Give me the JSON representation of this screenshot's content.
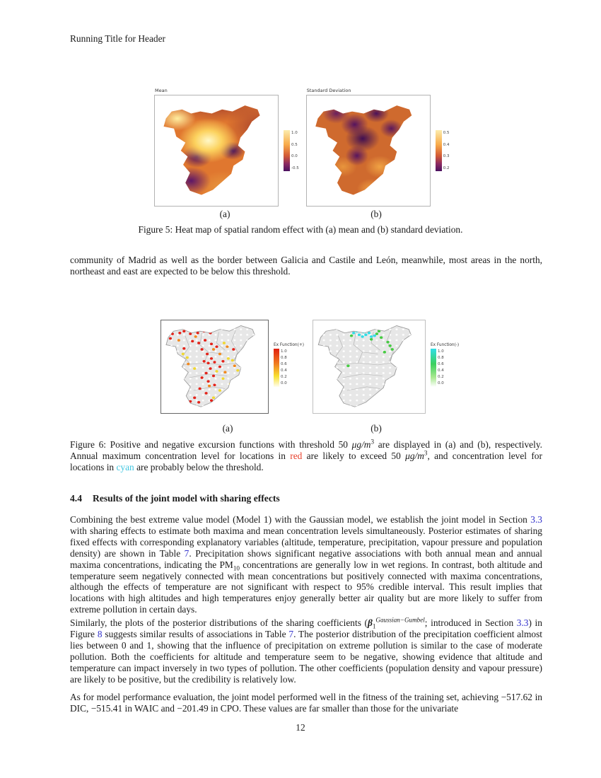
{
  "colors": {
    "link": "#3333cc",
    "red": "#e8402c",
    "cyan": "#41c6e0"
  },
  "page": {
    "header": "Running Title for Header",
    "page_number": "12"
  },
  "figure5": {
    "panel_a": {
      "title": "Mean",
      "legend_ticks": [
        "1.0",
        "0.5",
        "0.0",
        "-0.5"
      ],
      "label": "(a)"
    },
    "panel_b": {
      "title": "Standard Deviation",
      "legend_ticks": [
        "0.5",
        "0.4",
        "0.3",
        "0.2"
      ],
      "label": "(b)"
    },
    "caption": "Figure 5: Heat map of spatial random effect with (a) mean and (b) standard deviation."
  },
  "para_intro": "community of Madrid as well as the border between Galicia and Castile and León, meanwhile, most areas in the north, northeast and east are expected to be below this threshold.",
  "figure6": {
    "panel_a": {
      "legend_title": "Ex Function(+)",
      "legend_ticks": [
        "1.0",
        "0.8",
        "0.6",
        "0.4",
        "0.2",
        "0.0"
      ],
      "label": "(a)",
      "dots": [
        [
          10,
          14,
          "r"
        ],
        [
          13,
          9,
          "r"
        ],
        [
          17,
          13,
          "r"
        ],
        [
          8,
          19,
          "r"
        ],
        [
          21,
          11,
          "r"
        ],
        [
          27,
          14,
          "r"
        ],
        [
          34,
          13,
          "r"
        ],
        [
          40,
          11,
          "r"
        ],
        [
          46,
          13,
          "r"
        ],
        [
          29,
          22,
          "r"
        ],
        [
          35,
          24,
          "r"
        ],
        [
          41,
          21,
          "r"
        ],
        [
          47,
          25,
          "r"
        ],
        [
          52,
          28,
          "r"
        ],
        [
          38,
          31,
          "r"
        ],
        [
          43,
          36,
          "r"
        ],
        [
          47,
          41,
          "r"
        ],
        [
          44,
          46,
          "r"
        ],
        [
          50,
          45,
          "r"
        ],
        [
          40,
          44,
          "r"
        ],
        [
          46,
          52,
          "r"
        ],
        [
          42,
          57,
          "r"
        ],
        [
          49,
          60,
          "r"
        ],
        [
          38,
          62,
          "r"
        ],
        [
          44,
          66,
          "r"
        ],
        [
          50,
          70,
          "r"
        ],
        [
          36,
          74,
          "r"
        ],
        [
          42,
          79,
          "r"
        ],
        [
          31,
          84,
          "r"
        ],
        [
          27,
          88,
          "r"
        ],
        [
          35,
          89,
          "r"
        ],
        [
          47,
          87,
          "r"
        ],
        [
          74,
          60,
          "r"
        ],
        [
          77,
          66,
          "r"
        ],
        [
          73,
          72,
          "r"
        ],
        [
          68,
          31,
          "r"
        ],
        [
          21,
          30,
          "r"
        ],
        [
          55,
          50,
          "r"
        ],
        [
          58,
          44,
          "r"
        ],
        [
          16,
          21,
          "o"
        ],
        [
          32,
          17,
          "o"
        ],
        [
          49,
          31,
          "o"
        ],
        [
          55,
          36,
          "o"
        ],
        [
          45,
          71,
          "o"
        ],
        [
          60,
          56,
          "o"
        ],
        [
          69,
          49,
          "o"
        ],
        [
          25,
          47,
          "o"
        ],
        [
          62,
          28,
          "o"
        ],
        [
          24,
          40,
          "y"
        ],
        [
          52,
          55,
          "y"
        ],
        [
          58,
          63,
          "y"
        ],
        [
          63,
          41,
          "y"
        ],
        [
          55,
          76,
          "y"
        ],
        [
          49,
          84,
          "y"
        ],
        [
          65,
          69,
          "y"
        ],
        [
          31,
          52,
          "y"
        ],
        [
          59,
          24,
          "y"
        ],
        [
          67,
          43,
          "y"
        ],
        [
          20,
          36,
          "y"
        ],
        [
          72,
          54,
          "y"
        ]
      ]
    },
    "panel_b": {
      "legend_title": "Ex Function(-)",
      "legend_ticks": [
        "1.0",
        "0.8",
        "0.6",
        "0.4",
        "0.2",
        "0.0"
      ],
      "label": "(b)",
      "dots": [
        [
          39,
          11,
          "c"
        ],
        [
          42,
          9,
          "c"
        ],
        [
          45,
          12,
          "c"
        ],
        [
          48,
          10,
          "c"
        ],
        [
          41,
          15,
          "c"
        ],
        [
          44,
          17,
          "c"
        ],
        [
          50,
          13,
          "c"
        ],
        [
          52,
          17,
          "c"
        ],
        [
          47,
          15,
          "c"
        ],
        [
          55,
          16,
          "c"
        ],
        [
          78,
          53,
          "c"
        ],
        [
          80,
          57,
          "c"
        ],
        [
          36,
          13,
          "c"
        ],
        [
          57,
          14,
          "g"
        ],
        [
          61,
          18,
          "g"
        ],
        [
          67,
          23,
          "g"
        ],
        [
          71,
          31,
          "g"
        ],
        [
          75,
          39,
          "g"
        ],
        [
          73,
          45,
          "g"
        ],
        [
          31,
          49,
          "g"
        ],
        [
          59,
          11,
          "g"
        ],
        [
          64,
          34,
          "g"
        ],
        [
          69,
          27,
          "g"
        ],
        [
          34,
          16,
          "g"
        ],
        [
          52,
          20,
          "g"
        ]
      ]
    },
    "caption": {
      "t1": "Figure 6: Positive and negative excursion functions with threshold 50 ",
      "u1": "μg/m",
      "s1": "3",
      "t2": " are displayed in (a) and (b), respectively. Annual maximum concentration level for locations in ",
      "red_word": "red",
      "t3": " are likely to exceed 50 ",
      "u2": "μg/m",
      "s2": "3",
      "t4": ", and concentration level for locations in ",
      "cyan_word": "cyan",
      "t5": " are probably below the threshold."
    }
  },
  "section": {
    "number": "4.4",
    "title": "Results of the joint model with sharing effects"
  },
  "para_a": {
    "t1": "Combining the best extreme value model (Model 1) with the Gaussian model, we establish the joint model in Section ",
    "link1": "3.3",
    "t2": " with sharing effects to estimate both maxima and mean concentration levels simultaneously. Posterior estimates of sharing fixed effects with corresponding explanatory variables (altitude, temperature, precipitation, vapour pressure and population density) are shown in Table ",
    "link2": "7",
    "t3": ". Precipitation shows significant negative associations with both annual mean and annual maxima concentrations, indicating the ",
    "pm": "PM",
    "pm_sub": "10",
    "t4": " concentrations are generally low in wet regions. In contrast, both altitude and temperature seem negatively connected with mean concentrations but positively connected with maxima concentrations, although the effects of temperature are not significant with respect to 95% credible interval. This result implies that locations with high altitudes and high temperatures enjoy generally better air quality but are more likely to suffer from extreme pollution in certain days."
  },
  "para_b": {
    "t1": "Similarly, the plots of the posterior distributions of the sharing coefficients (",
    "beta": "β",
    "beta_sub": "1",
    "beta_sup": "Gaussian−Gumbel",
    "t2": "; introduced in Section ",
    "link1": "3.3",
    "t3": ") in Figure ",
    "link2": "8",
    "t4": " suggests similar results of associations in Table ",
    "link3": "7",
    "t5": ". The posterior distribution of the precipitation coefficient almost lies between 0 and 1, showing that the influence of precipitation on extreme pollution is similar to the case of moderate pollution. Both the coefficients for altitude and temperature seem to be negative, showing evidence that altitude and temperature can impact inversely in two types of pollution. The other coefficients (population density and vapour pressure) are likely to be positive, but the credibility is relatively low."
  },
  "para_c": {
    "t1": "As for model performance evaluation, the joint model performed well in the fitness of the training set, achieving ",
    "v1": "−517.62",
    "t2": " in DIC, ",
    "v2": "−515.41",
    "t3": " in WAIC and ",
    "v3": "−201.49",
    "t4": " in CPO. These values are far smaller than those for the univariate"
  }
}
